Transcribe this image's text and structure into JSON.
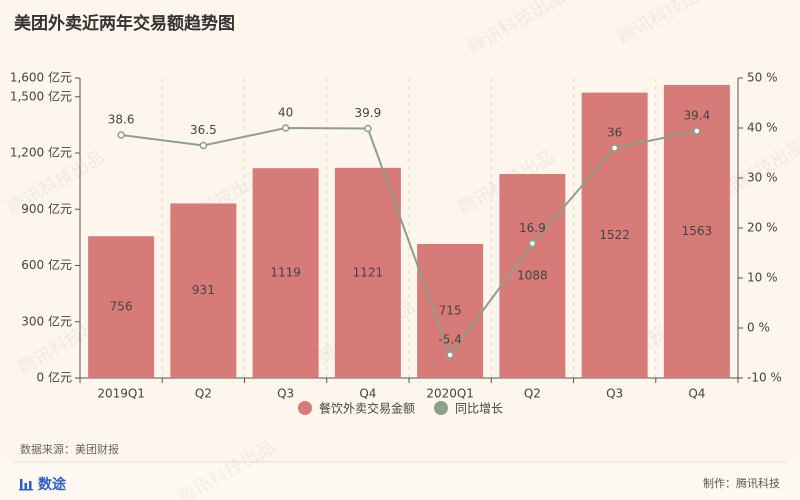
{
  "chart_data": {
    "type": "bar_line",
    "title": "美团外卖近两年交易额趋势图",
    "categories": [
      "2019Q1",
      "Q2",
      "Q3",
      "Q4",
      "2020Q1",
      "Q2",
      "Q3",
      "Q4"
    ],
    "series": [
      {
        "name": "餐饮外卖交易金额",
        "color": "#d77b78",
        "values": [
          756,
          931,
          1119,
          1121,
          715,
          1088,
          1522,
          1563
        ]
      },
      {
        "name": "同比增长",
        "color": "#8f9e8a",
        "axis": "y2",
        "values": [
          38.6,
          36.5,
          40,
          39.9,
          -5.4,
          16.9,
          36,
          39.4
        ]
      }
    ],
    "ylim": [
      0,
      1600
    ],
    "yticks": [
      {
        "value": 0,
        "label": "0 亿元"
      },
      {
        "value": 300,
        "label": "300 亿元"
      },
      {
        "value": 600,
        "label": "600 亿元"
      },
      {
        "value": 900,
        "label": "900 亿元"
      },
      {
        "value": 1200,
        "label": "1,200 亿元"
      },
      {
        "value": 1500,
        "label": "1,500 亿元"
      },
      {
        "value": 1600,
        "label": "1,600 亿元"
      }
    ],
    "y2lim": [
      -10,
      50
    ],
    "y2ticks": [
      {
        "value": -10,
        "label": "-10 %"
      },
      {
        "value": 0,
        "label": "0 %"
      },
      {
        "value": 10,
        "label": "10 %"
      },
      {
        "value": 20,
        "label": "20 %"
      },
      {
        "value": 30,
        "label": "30 %"
      },
      {
        "value": 40,
        "label": "40 %"
      },
      {
        "value": 50,
        "label": "50 %"
      }
    ],
    "source": "数据来源：美团财报",
    "brand": "数途",
    "credit": "制作：腾讯科技",
    "watermark": "腾讯科技出品"
  }
}
